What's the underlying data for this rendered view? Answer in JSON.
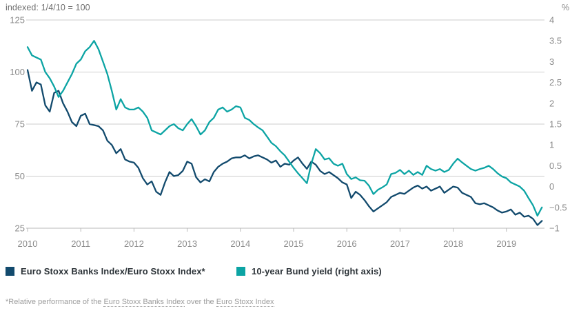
{
  "header": {
    "left_axis_title": "indexed: 1/4/10 = 100",
    "right_axis_title": "%"
  },
  "legend": {
    "items": [
      {
        "label": "Euro Stoxx Banks Index/Euro Stoxx Index*",
        "color": "#124a6d"
      },
      {
        "label": "10-year Bund yield (right axis)",
        "color": "#0ca4a4"
      }
    ]
  },
  "footnote": {
    "prefix": "*Relative performance of the ",
    "link1": "Euro Stoxx Banks Index",
    "middle": " over the ",
    "link2": "Euro Stoxx Index"
  },
  "chart_data": {
    "type": "line",
    "title": "indexed: 1/4/10 = 100",
    "x_start": {
      "year": 2010,
      "month": 1
    },
    "x_resolution": "monthly",
    "x_tick_years": [
      2010,
      2011,
      2012,
      2013,
      2014,
      2015,
      2016,
      2017,
      2018,
      2019
    ],
    "left_axis": {
      "label": "indexed: 1/4/10 = 100",
      "ticks": [
        125,
        100,
        75,
        50,
        25
      ],
      "range": [
        25,
        125
      ]
    },
    "right_axis": {
      "label": "%",
      "ticks": [
        4,
        3.5,
        3,
        2.5,
        2,
        1.5,
        1,
        0.5,
        0,
        -0.5,
        -1
      ],
      "range": [
        -1,
        4
      ]
    },
    "grid": "horizontal-only",
    "legend_position": "bottom",
    "series": [
      {
        "name": "Euro Stoxx Banks Index/Euro Stoxx Index*",
        "axis": "left",
        "color": "#124a6d",
        "monthly_values": [
          101,
          91,
          95,
          94,
          84,
          81,
          90,
          91,
          85,
          81,
          76,
          74,
          79,
          80,
          75,
          74.5,
          74,
          72,
          67,
          65,
          61,
          63,
          58,
          57,
          56.5,
          54,
          49,
          46,
          47.5,
          42.5,
          41,
          47,
          52,
          50,
          50.5,
          52.5,
          57,
          56,
          49.5,
          47,
          48.5,
          47.5,
          52,
          54.5,
          56,
          57,
          58.5,
          59,
          59,
          60,
          58.5,
          59.5,
          60,
          59,
          58,
          56.5,
          57.5,
          54.5,
          56,
          55.5,
          57.5,
          59,
          56,
          53.5,
          57,
          55.5,
          52.5,
          51,
          52,
          50.5,
          49,
          47,
          46,
          39.5,
          42.5,
          41,
          38.5,
          35.5,
          33,
          34.5,
          36,
          37.5,
          40,
          41,
          42,
          41.5,
          43,
          44.5,
          45.5,
          44,
          45,
          43,
          44,
          45,
          42,
          43.5,
          45,
          44.5,
          42,
          41,
          40,
          37,
          36.5,
          37,
          36,
          35,
          33.5,
          32.5,
          33,
          34,
          31.5,
          32.5,
          30.5,
          31,
          29.5,
          26.5,
          28.5
        ]
      },
      {
        "name": "10-year Bund yield (right axis)",
        "axis": "right",
        "color": "#0ca4a4",
        "monthly_values": [
          3.35,
          3.15,
          3.1,
          3.05,
          2.75,
          2.6,
          2.4,
          2.15,
          2.3,
          2.5,
          2.7,
          2.95,
          3.05,
          3.25,
          3.35,
          3.5,
          3.3,
          3.0,
          2.7,
          2.3,
          1.85,
          2.1,
          1.9,
          1.85,
          1.85,
          1.9,
          1.8,
          1.65,
          1.35,
          1.3,
          1.25,
          1.35,
          1.45,
          1.5,
          1.4,
          1.35,
          1.5,
          1.62,
          1.45,
          1.25,
          1.35,
          1.55,
          1.65,
          1.85,
          1.9,
          1.8,
          1.85,
          1.93,
          1.9,
          1.65,
          1.6,
          1.5,
          1.42,
          1.35,
          1.2,
          1.05,
          0.97,
          0.85,
          0.75,
          0.6,
          0.45,
          0.32,
          0.2,
          0.08,
          0.55,
          0.9,
          0.8,
          0.65,
          0.68,
          0.55,
          0.5,
          0.55,
          0.3,
          0.18,
          0.22,
          0.15,
          0.14,
          0.02,
          -0.18,
          -0.08,
          -0.02,
          0.05,
          0.3,
          0.33,
          0.4,
          0.3,
          0.38,
          0.28,
          0.35,
          0.28,
          0.5,
          0.42,
          0.38,
          0.42,
          0.35,
          0.4,
          0.55,
          0.67,
          0.58,
          0.5,
          0.42,
          0.38,
          0.42,
          0.45,
          0.5,
          0.42,
          0.32,
          0.24,
          0.2,
          0.1,
          0.05,
          0.0,
          -0.1,
          -0.28,
          -0.45,
          -0.7,
          -0.5
        ]
      }
    ]
  },
  "style": {
    "grid_color": "#cdcdcd",
    "axis_color": "#b9b9b9",
    "tick_label_color": "#8a8a8a"
  }
}
